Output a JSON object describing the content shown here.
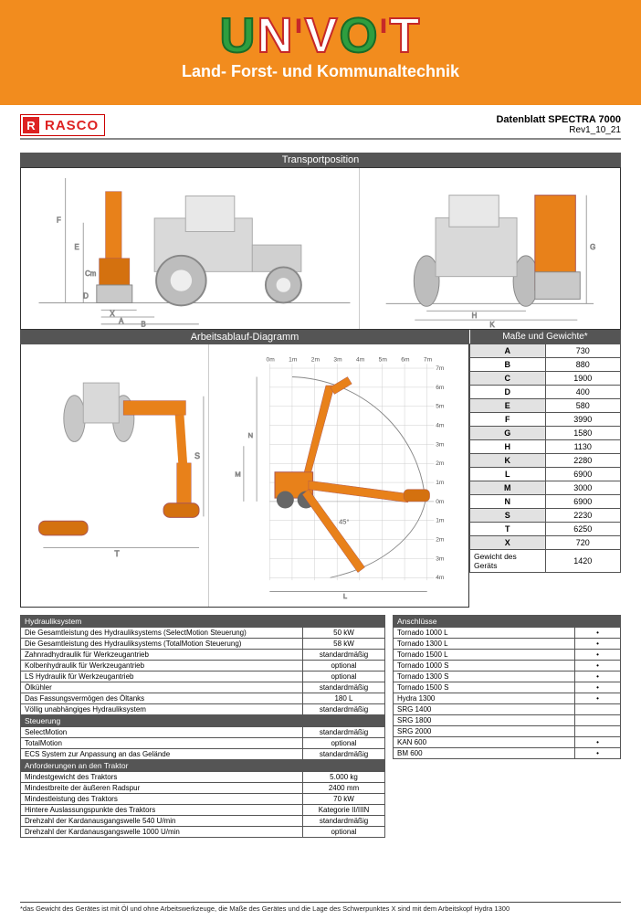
{
  "banner": {
    "logo_parts": {
      "p1": "U",
      "p2": "N",
      "p3": "V",
      "p4": "O",
      "p5": "T",
      "i": "i"
    },
    "tagline": "Land- Forst- und Kommunaltechnik"
  },
  "doc": {
    "brand": "RASCO",
    "brand_icon": "R",
    "title": "Datenblatt SPECTRA 7000",
    "rev": "Rev1_10_21"
  },
  "sections": {
    "transport": "Transportposition",
    "diagram": "Arbeitsablauf-Diagramm",
    "dims": "Maße und Gewichte*"
  },
  "dimensions": {
    "header": "Maße und Gewichte*",
    "rows": [
      {
        "k": "A",
        "v": "730",
        "shade": true
      },
      {
        "k": "B",
        "v": "880",
        "shade": false
      },
      {
        "k": "C",
        "v": "1900",
        "shade": true
      },
      {
        "k": "D",
        "v": "400",
        "shade": false
      },
      {
        "k": "E",
        "v": "580",
        "shade": true
      },
      {
        "k": "F",
        "v": "3990",
        "shade": false
      },
      {
        "k": "G",
        "v": "1580",
        "shade": true
      },
      {
        "k": "H",
        "v": "1130",
        "shade": false
      },
      {
        "k": "K",
        "v": "2280",
        "shade": true
      },
      {
        "k": "L",
        "v": "6900",
        "shade": false
      },
      {
        "k": "M",
        "v": "3000",
        "shade": true
      },
      {
        "k": "N",
        "v": "6900",
        "shade": false
      },
      {
        "k": "S",
        "v": "2230",
        "shade": true
      },
      {
        "k": "T",
        "v": "6250",
        "shade": false
      },
      {
        "k": "X",
        "v": "720",
        "shade": true
      }
    ],
    "weight_label": "Gewicht des Geräts",
    "weight_value": "1420"
  },
  "transport_labels": {
    "left_dims": [
      "F",
      "E",
      "Cm",
      "X",
      "A",
      "B",
      "D"
    ],
    "right_dims": [
      "G",
      "H",
      "K"
    ]
  },
  "diagram_labels": {
    "grid_x": [
      "0m",
      "1m",
      "2m",
      "3m",
      "4m",
      "5m",
      "6m",
      "7m"
    ],
    "grid_y_top": [
      "7m",
      "6m",
      "5m",
      "4m",
      "3m",
      "2m",
      "1m",
      "0m",
      "1m",
      "2m",
      "3m",
      "4m"
    ],
    "angle": "45°",
    "left_dims": [
      "S",
      "T"
    ],
    "right_dims": [
      "N",
      "M",
      "L"
    ]
  },
  "spec_left": {
    "groups": [
      {
        "header": "Hydrauliksystem",
        "rows": [
          [
            "Die Gesamtleistung des Hydrauliksystems (SelectMotion Steuerung)",
            "50 kW"
          ],
          [
            "Die Gesamtleistung des Hydrauliksystems (TotalMotion Steuerung)",
            "58 kW"
          ],
          [
            "Zahnradhydraulik für Werkzeugantrieb",
            "standardmäßig"
          ],
          [
            "Kolbenhydraulik für Werkzeugantrieb",
            "optional"
          ],
          [
            "LS Hydraulik für Werkzeugantrieb",
            "optional"
          ],
          [
            "Ölkühler",
            "standardmäßig"
          ],
          [
            "Das Fassungsvermögen des Öltanks",
            "180 L"
          ],
          [
            "Völlig unabhängiges Hydrauliksystem",
            "standardmäßig"
          ]
        ]
      },
      {
        "header": "Steuerung",
        "rows": [
          [
            "SelectMotion",
            "standardmäßig"
          ],
          [
            "TotalMotion",
            "optional"
          ],
          [
            "ECS System zur Anpassung an das Gelände",
            "standardmäßig"
          ]
        ]
      },
      {
        "header": "Anforderungen an den Traktor",
        "rows": [
          [
            "Mindestgewicht des Traktors",
            "5.000 kg"
          ],
          [
            "Mindestbreite der äußeren Radspur",
            "2400 mm"
          ],
          [
            "Mindestleistung des Traktors",
            "70 kW"
          ],
          [
            "Hintere Auslassungspunkte des Traktors",
            "Kategorie II/IIIN"
          ],
          [
            "Drehzahl der Kardanausgangswelle 540 U/min",
            "standardmäßig"
          ],
          [
            "Drehzahl der Kardanausgangswelle 1000 U/min",
            "optional"
          ]
        ]
      }
    ]
  },
  "spec_right": {
    "header": "Anschlüsse",
    "rows": [
      [
        "Tornado 1000 L",
        "•"
      ],
      [
        "Tornado 1300 L",
        "•"
      ],
      [
        "Tornado 1500 L",
        "•"
      ],
      [
        "Tornado 1000 S",
        "•"
      ],
      [
        "Tornado 1300 S",
        "•"
      ],
      [
        "Tornado 1500 S",
        "•"
      ],
      [
        "Hydra 1300",
        "•"
      ],
      [
        "SRG 1400",
        ""
      ],
      [
        "SRG 1800",
        ""
      ],
      [
        "SRG 2000",
        ""
      ],
      [
        "KAN 600",
        "•"
      ],
      [
        "BM 600",
        "•"
      ]
    ]
  },
  "footnote": "*das Gewicht des Gerätes ist mit Öl und ohne Arbeitswerkzeuge, die Maße des Gerätes und die Lage des Schwerpunktes X sind mit dem Arbeitskopf Hydra 1300",
  "colors": {
    "banner": "#f28c1e",
    "accent": "#d22",
    "section_bar": "#555555",
    "border": "#333333",
    "shade": "#e2e2e2",
    "machine_orange": "#e8811a",
    "machine_gray": "#c8c8c8"
  }
}
